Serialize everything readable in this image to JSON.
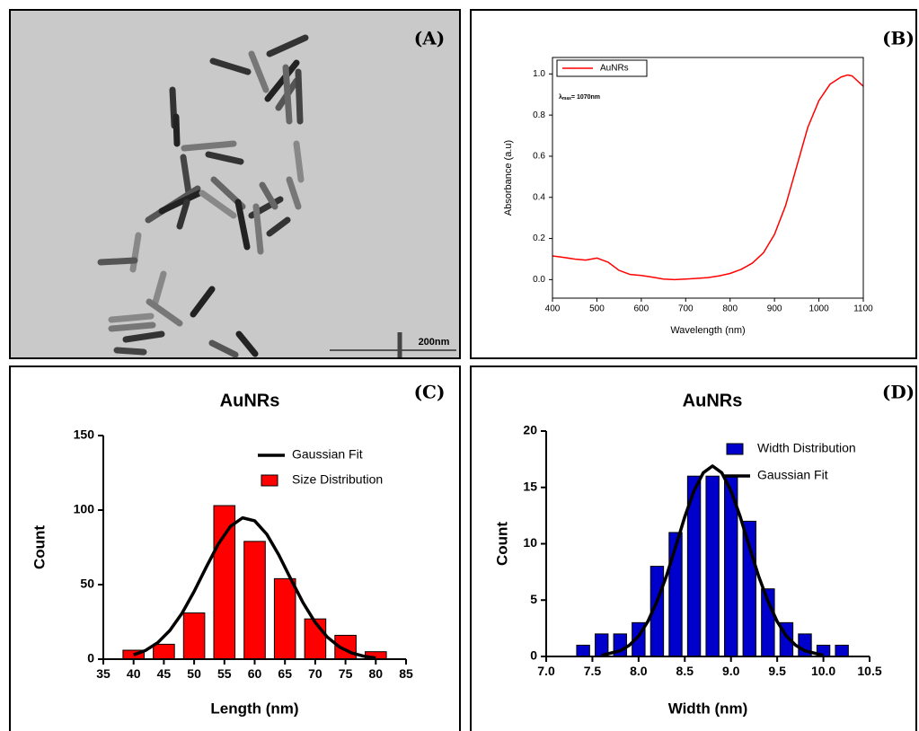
{
  "panel_labels": [
    "(A)",
    "(B)",
    "(C)",
    "(D)"
  ],
  "image": {
    "scale_bar": "200nm"
  },
  "chart_data": [
    {
      "type": "line",
      "xlabel": "Wavelength (nm)",
      "ylabel": "Absorbance (a.u)",
      "annotation": {
        "base": "λ",
        "sub": "max",
        "rest": "= 1070nm"
      },
      "xlim": [
        400,
        1100
      ],
      "xticks": [
        400,
        500,
        600,
        700,
        800,
        900,
        1000,
        1100
      ],
      "ylim": [
        -0.09,
        1.08
      ],
      "yticks": [
        {
          "value": 0,
          "label": "0.0"
        },
        0.2,
        0.4,
        0.6,
        0.8,
        {
          "value": 1,
          "label": "1.0"
        }
      ],
      "legend": "upper-left",
      "series": [
        {
          "name": "AuNRs",
          "type": "line",
          "color": "#ff0000",
          "x": [
            400,
            425,
            450,
            475,
            500,
            525,
            550,
            575,
            600,
            625,
            650,
            675,
            700,
            725,
            750,
            775,
            800,
            825,
            850,
            875,
            900,
            925,
            950,
            975,
            1000,
            1025,
            1050,
            1065,
            1075,
            1100
          ],
          "values": [
            0.115,
            0.108,
            0.1,
            0.095,
            0.105,
            0.085,
            0.045,
            0.025,
            0.02,
            0.012,
            0.003,
            0.0,
            0.003,
            0.006,
            0.01,
            0.018,
            0.03,
            0.05,
            0.08,
            0.13,
            0.22,
            0.36,
            0.55,
            0.74,
            0.87,
            0.95,
            0.985,
            0.995,
            0.99,
            0.94
          ]
        }
      ]
    },
    {
      "type": "bar",
      "title": "AuNRs",
      "xlabel": "Length (nm)",
      "ylabel": "Count",
      "xlim": [
        35,
        85
      ],
      "xticks": [
        35,
        40,
        45,
        50,
        55,
        60,
        65,
        70,
        75,
        80,
        85
      ],
      "ylim": [
        0,
        150
      ],
      "yticks": [
        0,
        50,
        100,
        150
      ],
      "legend": "upper-right",
      "series": [
        {
          "name": "Gaussian Fit",
          "type": "line",
          "color": "#000000",
          "x": [
            40,
            42,
            44,
            46,
            48,
            50,
            52,
            54,
            56,
            58,
            60,
            62,
            64,
            66,
            68,
            70,
            72,
            74,
            76,
            78,
            80
          ],
          "values": [
            2.9,
            5.9,
            11.1,
            19.3,
            30.8,
            45.4,
            61.7,
            77.3,
            89.1,
            94.8,
            92.8,
            83.8,
            69.8,
            53.5,
            37.8,
            24.6,
            14.8,
            8.2,
            4.2,
            2.0,
            0.8
          ]
        },
        {
          "name": "Size Distribution",
          "type": "bar",
          "color": "#ff0000",
          "x": [
            40,
            45,
            50,
            55,
            60,
            65,
            70,
            75,
            80
          ],
          "values": [
            6,
            10,
            31,
            103,
            79,
            54,
            27,
            16,
            5
          ]
        }
      ]
    },
    {
      "type": "bar",
      "title": "AuNRs",
      "xlabel": "Width (nm)",
      "ylabel": "Count",
      "xlim": [
        7,
        10.5
      ],
      "xticks": [
        {
          "value": 7,
          "label": "7.0"
        },
        7.5,
        {
          "value": 8,
          "label": "8.0"
        },
        8.5,
        {
          "value": 9,
          "label": "9.0"
        },
        9.5,
        {
          "value": 10,
          "label": "10.0"
        },
        10.5
      ],
      "ylim": [
        0,
        20
      ],
      "yticks": [
        0,
        5,
        10,
        15,
        20
      ],
      "legend": "upper-right",
      "series": [
        {
          "name": "Width Distribution",
          "type": "bar",
          "color": "#0000cc",
          "x": [
            7.4,
            7.6,
            7.8,
            8.0,
            8.2,
            8.4,
            8.6,
            8.8,
            9.0,
            9.2,
            9.4,
            9.6,
            9.8,
            10.0,
            10.2
          ],
          "values": [
            1,
            2,
            2,
            3,
            8,
            11,
            16,
            16,
            16,
            12,
            6,
            3,
            2,
            1,
            1
          ]
        },
        {
          "name": "Gaussian Fit",
          "type": "line",
          "color": "#000000",
          "x": [
            7.6,
            7.7,
            7.8,
            7.9,
            8.0,
            8.1,
            8.2,
            8.3,
            8.4,
            8.5,
            8.6,
            8.7,
            8.8,
            8.9,
            9.0,
            9.1,
            9.2,
            9.3,
            9.4,
            9.5,
            9.6,
            9.7,
            9.8,
            9.9,
            10.0
          ],
          "values": [
            0.1,
            0.3,
            0.5,
            1.0,
            1.8,
            3.1,
            4.9,
            7.1,
            9.7,
            12.4,
            14.7,
            16.3,
            16.9,
            16.3,
            14.7,
            12.4,
            9.7,
            7.1,
            4.9,
            3.1,
            1.8,
            1.0,
            0.5,
            0.3,
            0.1
          ]
        }
      ]
    }
  ]
}
